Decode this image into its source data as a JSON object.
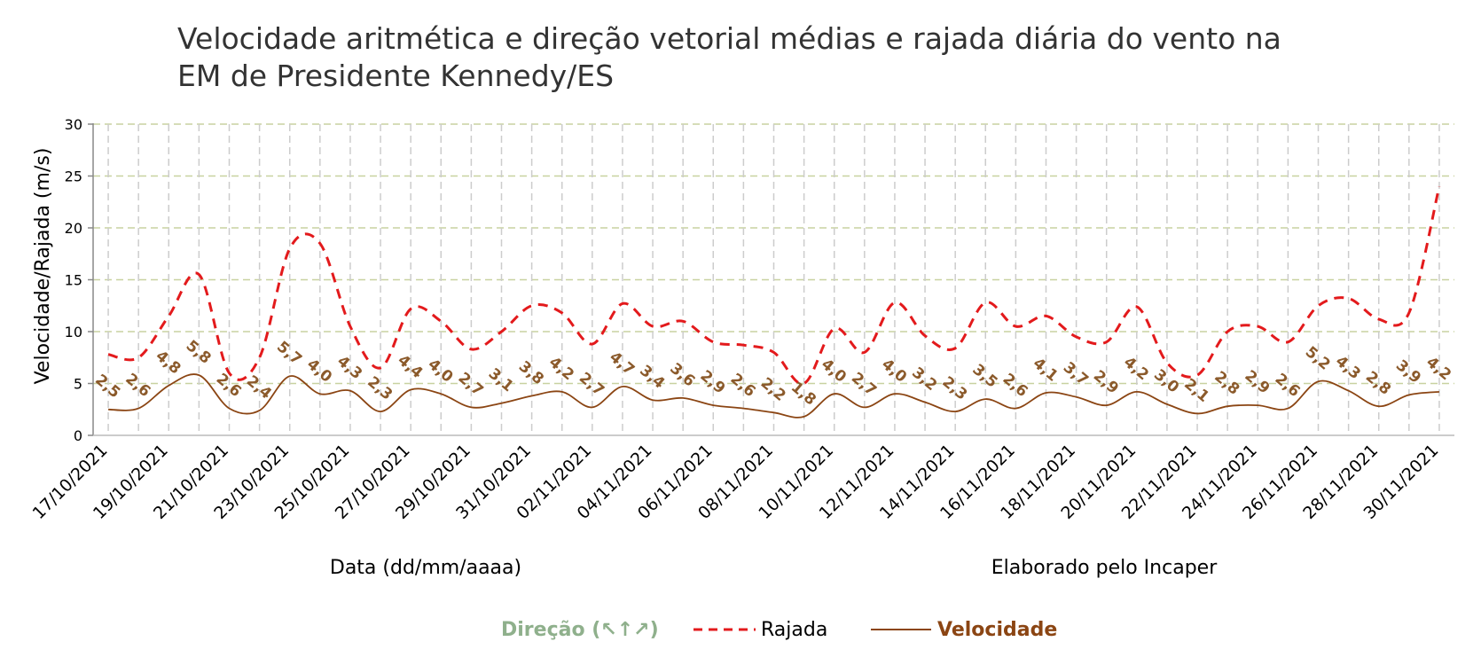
{
  "chart_data": {
    "type": "line",
    "title_line1": "Velocidade aritmética e direção vetorial médias e rajada diária do vento na",
    "title_line2": "EM de Presidente Kennedy/ES",
    "ylabel": "Velocidade/Rajada (m/s)",
    "xlabel": "Data (dd/mm/aaaa)",
    "credit": "Elaborado pelo Incaper",
    "ylim": [
      0,
      30
    ],
    "yticks": [
      0,
      5,
      10,
      15,
      20,
      25,
      30
    ],
    "grid": true,
    "legend_position": "bottom",
    "x": [
      "17/10/2021",
      "18/10/2021",
      "19/10/2021",
      "20/10/2021",
      "21/10/2021",
      "22/10/2021",
      "23/10/2021",
      "24/10/2021",
      "25/10/2021",
      "26/10/2021",
      "27/10/2021",
      "28/10/2021",
      "29/10/2021",
      "30/10/2021",
      "31/10/2021",
      "01/11/2021",
      "02/11/2021",
      "03/11/2021",
      "04/11/2021",
      "05/11/2021",
      "06/11/2021",
      "07/11/2021",
      "08/11/2021",
      "09/11/2021",
      "10/11/2021",
      "11/11/2021",
      "12/11/2021",
      "13/11/2021",
      "14/11/2021",
      "15/11/2021",
      "16/11/2021",
      "17/11/2021",
      "18/11/2021",
      "19/11/2021",
      "20/11/2021",
      "21/11/2021",
      "22/11/2021",
      "23/11/2021",
      "24/11/2021",
      "25/11/2021",
      "26/11/2021",
      "27/11/2021",
      "28/11/2021",
      "29/11/2021",
      "30/11/2021"
    ],
    "x_tick_labels": [
      "17/10/2021",
      "19/10/2021",
      "21/10/2021",
      "23/10/2021",
      "25/10/2021",
      "27/10/2021",
      "29/10/2021",
      "31/10/2021",
      "02/11/2021",
      "04/11/2021",
      "06/11/2021",
      "08/11/2021",
      "10/11/2021",
      "12/11/2021",
      "14/11/2021",
      "16/11/2021",
      "18/11/2021",
      "20/11/2021",
      "22/11/2021",
      "24/11/2021",
      "26/11/2021",
      "28/11/2021",
      "30/11/2021"
    ],
    "series": [
      {
        "name": "Rajada",
        "style": "dashed",
        "color": "#e31a1c",
        "values": [
          7.8,
          7.5,
          11.5,
          15.5,
          6.0,
          7.5,
          18.0,
          18.5,
          10.5,
          6.5,
          12.2,
          11.0,
          8.3,
          10.0,
          12.5,
          11.8,
          8.8,
          12.7,
          10.5,
          11.0,
          9.0,
          8.7,
          8.0,
          5.0,
          10.3,
          8.0,
          12.8,
          9.6,
          8.4,
          12.8,
          10.5,
          11.5,
          9.5,
          9.0,
          12.4,
          7.0,
          5.8,
          10.0,
          10.5,
          9.0,
          12.5,
          13.2,
          11.2,
          11.8,
          24.0
        ]
      },
      {
        "name": "Velocidade",
        "style": "solid",
        "color": "#8b4513",
        "values": [
          2.5,
          2.6,
          4.8,
          5.8,
          2.6,
          2.4,
          5.7,
          4.0,
          4.3,
          2.3,
          4.4,
          4.0,
          2.7,
          3.1,
          3.8,
          4.2,
          2.7,
          4.7,
          3.4,
          3.6,
          2.9,
          2.6,
          2.2,
          1.8,
          4.0,
          2.7,
          4.0,
          3.2,
          2.3,
          3.5,
          2.6,
          4.1,
          3.7,
          2.9,
          4.2,
          3.0,
          2.1,
          2.8,
          2.9,
          2.6,
          5.2,
          4.3,
          2.8,
          3.9,
          4.2
        ],
        "labels": [
          "2,5",
          "2,6",
          "4,8",
          "5,8",
          "2,6",
          "2,4",
          "5,7",
          "4,0",
          "4,3",
          "2,3",
          "4,4",
          "4,0",
          "2,7",
          "3,1",
          "3,8",
          "4,2",
          "2,7",
          "4,7",
          "3,4",
          "3,6",
          "2,9",
          "2,6",
          "2,2",
          "1,8",
          "4,0",
          "2,7",
          "4,0",
          "3,2",
          "2,3",
          "3,5",
          "2,6",
          "4,1",
          "3,7",
          "2,9",
          "4,2",
          "3,0",
          "2,1",
          "2,8",
          "2,9",
          "2,6",
          "5,2",
          "4,3",
          "2,8",
          "3,9",
          "4,2"
        ]
      }
    ],
    "legend": {
      "direcao": "Direção (↖↑↗)",
      "rajada": "Rajada",
      "velocidade": "Velocidade"
    },
    "colors": {
      "direcao": "#8fb08c",
      "rajada": "#e31a1c",
      "velocidade": "#8b4513",
      "data_labels": "#8b5a2b",
      "grid": "#c8d2a0",
      "vgrid": "#cccccc"
    }
  }
}
